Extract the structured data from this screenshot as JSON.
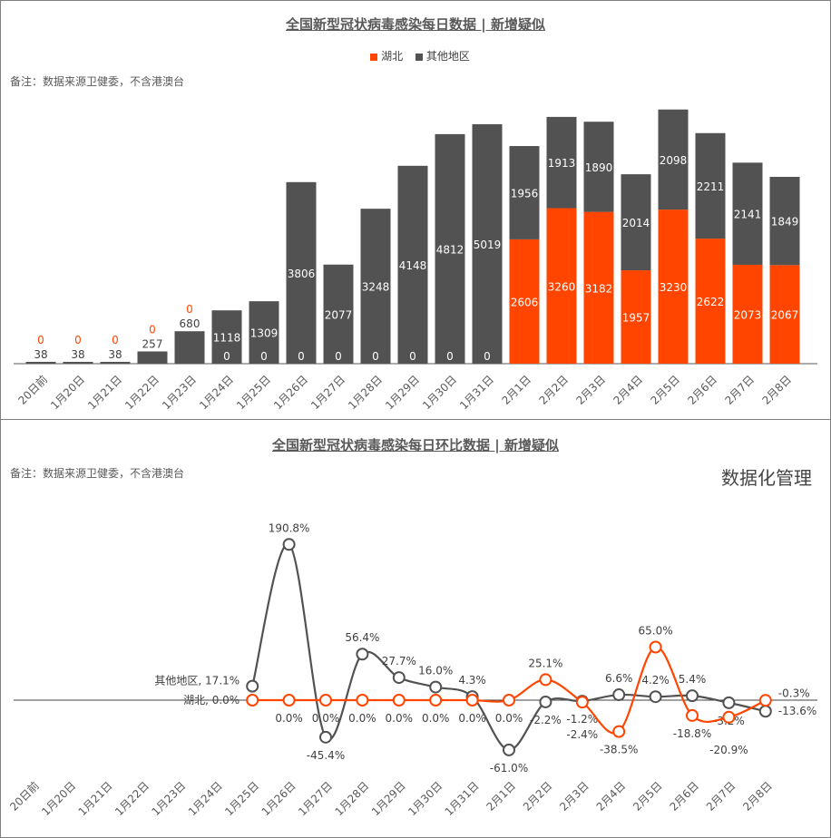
{
  "chart_data": [
    {
      "type": "bar",
      "stacked": true,
      "title": "全国新型冠状病毒感染每日数据 | 新增疑似",
      "categories": [
        "20日前",
        "1月20日",
        "1月21日",
        "1月22日",
        "1月23日",
        "1月24日",
        "1月25日",
        "1月26日",
        "1月27日",
        "1月28日",
        "1月29日",
        "1月30日",
        "1月31日",
        "2月1日",
        "2月2日",
        "2月3日",
        "2月4日",
        "2月5日",
        "2月6日",
        "2月7日",
        "2月8日"
      ],
      "series": [
        {
          "name": "湖北",
          "color": "#FF4500",
          "values": [
            0,
            0,
            0,
            0,
            0,
            0,
            0,
            0,
            0,
            0,
            0,
            0,
            0,
            2606,
            3260,
            3182,
            1957,
            3230,
            2622,
            2073,
            2067
          ]
        },
        {
          "name": "其他地区",
          "color": "#525252",
          "values": [
            38,
            38,
            38,
            257,
            680,
            1118,
            1309,
            3806,
            2077,
            3248,
            4148,
            4812,
            5019,
            1956,
            1913,
            1890,
            2014,
            2098,
            2211,
            2141,
            1849
          ]
        }
      ],
      "legend": "top",
      "note": "备注：数据来源卫健委，不含港澳台"
    },
    {
      "type": "line",
      "smooth": true,
      "title": "全国新型冠状病毒感染每日环比数据 | 新增疑似",
      "categories": [
        "20日前",
        "1月20日",
        "1月21日",
        "1月22日",
        "1月23日",
        "1月24日",
        "1月25日",
        "1月26日",
        "1月27日",
        "1月28日",
        "1月29日",
        "1月30日",
        "1月31日",
        "2月1日",
        "2月2日",
        "2月3日",
        "2月4日",
        "2月5日",
        "2月6日",
        "2月7日",
        "2月8日"
      ],
      "series": [
        {
          "name": "其他地区",
          "color": "#525252",
          "values": [
            null,
            null,
            null,
            null,
            null,
            null,
            17.1,
            190.8,
            -45.4,
            56.4,
            27.7,
            16.0,
            4.3,
            -61.0,
            -2.2,
            -1.2,
            6.6,
            4.2,
            5.4,
            -3.2,
            -13.6
          ]
        },
        {
          "name": "湖北",
          "color": "#FF4500",
          "values": [
            null,
            null,
            null,
            null,
            null,
            null,
            0.0,
            0.0,
            0.0,
            0.0,
            0.0,
            0.0,
            0.0,
            0.0,
            25.1,
            -2.4,
            -38.5,
            65.0,
            -18.8,
            -20.9,
            -0.3
          ]
        }
      ],
      "unit": "%",
      "note": "备注：数据来源卫健委，不含港澳台"
    }
  ],
  "watermark": "数据化管理"
}
